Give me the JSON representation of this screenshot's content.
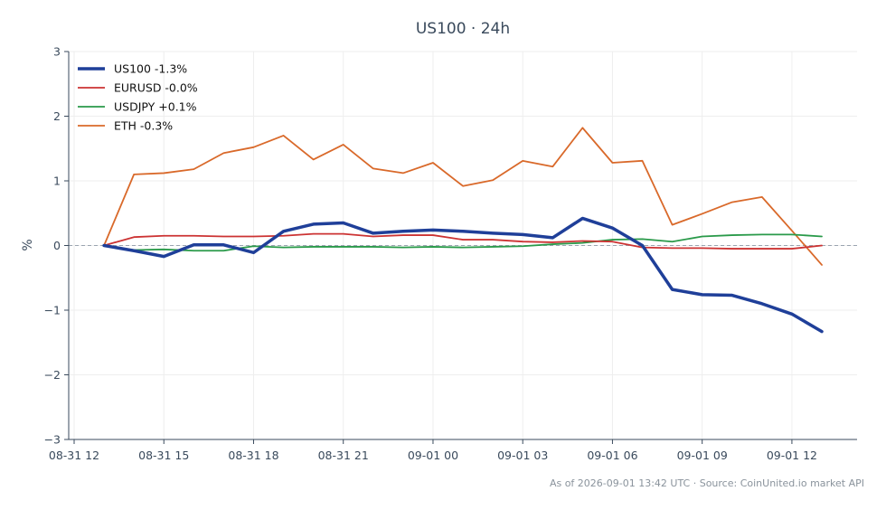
{
  "chart_data": {
    "type": "line",
    "title": "US100 · 24h",
    "xlabel": "",
    "ylabel": "%",
    "ylim": [
      -3,
      3
    ],
    "yticks": [
      3,
      2,
      1,
      0,
      -1,
      -2,
      -3
    ],
    "ytick_labels": [
      "3",
      "2",
      "1",
      "0",
      "−1",
      "−2",
      "−3"
    ],
    "xlim": [
      0,
      25
    ],
    "xticks": [
      0,
      3,
      6,
      9,
      12,
      15,
      18,
      21,
      24
    ],
    "xtick_labels": [
      "08-31 12",
      "08-31 15",
      "08-31 18",
      "08-31 21",
      "09-01 00",
      "09-01 03",
      "09-01 06",
      "09-01 09",
      "09-01 12"
    ],
    "grid": true,
    "legend_position": "top-left",
    "zero_line": true,
    "x": [
      1,
      2,
      3,
      4,
      5,
      6,
      7,
      8,
      9,
      10,
      11,
      12,
      13,
      14,
      15,
      16,
      17,
      18,
      19,
      20,
      21,
      22,
      23,
      24,
      25
    ],
    "series": [
      {
        "name": "US100 -1.3%",
        "color": "#1f3f99",
        "width": 3.5,
        "values": [
          0.0,
          -0.08,
          -0.17,
          0.01,
          0.01,
          -0.11,
          0.22,
          0.33,
          0.35,
          0.19,
          0.22,
          0.24,
          0.22,
          0.19,
          0.17,
          0.12,
          0.42,
          0.27,
          0.0,
          -0.68,
          -0.76,
          -0.77,
          -0.9,
          -1.06,
          -1.33
        ]
      },
      {
        "name": "EURUSD -0.0%",
        "color": "#cc3333",
        "width": 1.8,
        "values": [
          0.0,
          0.13,
          0.15,
          0.15,
          0.14,
          0.14,
          0.15,
          0.18,
          0.18,
          0.14,
          0.16,
          0.16,
          0.09,
          0.09,
          0.06,
          0.05,
          0.07,
          0.06,
          -0.03,
          -0.04,
          -0.04,
          -0.05,
          -0.05,
          -0.05,
          0.0
        ]
      },
      {
        "name": "USDJPY +0.1%",
        "color": "#2a9a4a",
        "width": 1.8,
        "values": [
          0.0,
          -0.07,
          -0.06,
          -0.08,
          -0.08,
          -0.01,
          -0.03,
          -0.02,
          -0.02,
          -0.02,
          -0.03,
          -0.02,
          -0.03,
          -0.02,
          -0.01,
          0.02,
          0.04,
          0.09,
          0.1,
          0.06,
          0.14,
          0.16,
          0.17,
          0.17,
          0.14
        ]
      },
      {
        "name": "ETH -0.3%",
        "color": "#d9692a",
        "width": 1.8,
        "values": [
          0.0,
          1.1,
          1.12,
          1.18,
          1.43,
          1.52,
          1.7,
          1.33,
          1.56,
          1.19,
          1.12,
          1.28,
          0.92,
          1.01,
          1.31,
          1.22,
          1.82,
          1.28,
          1.31,
          0.32,
          0.49,
          0.67,
          0.75,
          0.23,
          -0.3
        ]
      }
    ]
  },
  "footer": "As of 2026-09-01 13:42 UTC · Source: CoinUnited.io market API"
}
